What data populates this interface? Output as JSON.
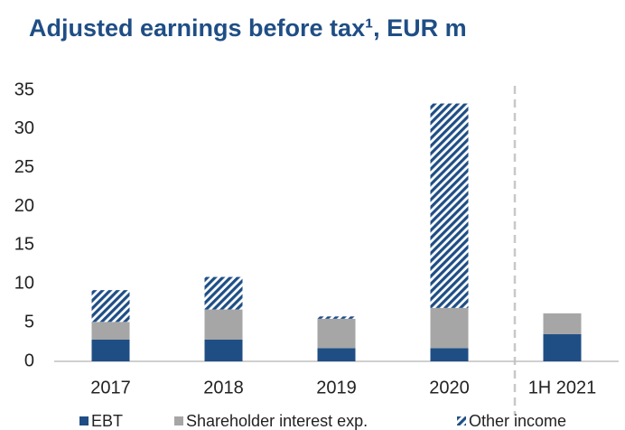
{
  "chart_data": {
    "type": "stacked_bar",
    "title": "Adjusted earnings before tax¹, EUR m",
    "categories": [
      "2017",
      "2018",
      "2019",
      "2020",
      "1H 2021"
    ],
    "series": [
      {
        "name": "EBT",
        "color": "#1f4e85",
        "values": [
          2.8,
          2.8,
          1.7,
          1.7,
          3.5
        ]
      },
      {
        "name": "Shareholder interest exp.",
        "color": "#a6a6a6",
        "values": [
          2.3,
          3.9,
          3.8,
          5.2,
          2.7
        ]
      },
      {
        "name": "Other income",
        "color": "#1f4e85",
        "pattern": "hatch",
        "values": [
          4.1,
          4.2,
          0.3,
          26.4,
          0
        ]
      }
    ],
    "ylim": [
      0,
      35
    ],
    "yticks": [
      0,
      5,
      10,
      15,
      20,
      25,
      30,
      35
    ]
  }
}
